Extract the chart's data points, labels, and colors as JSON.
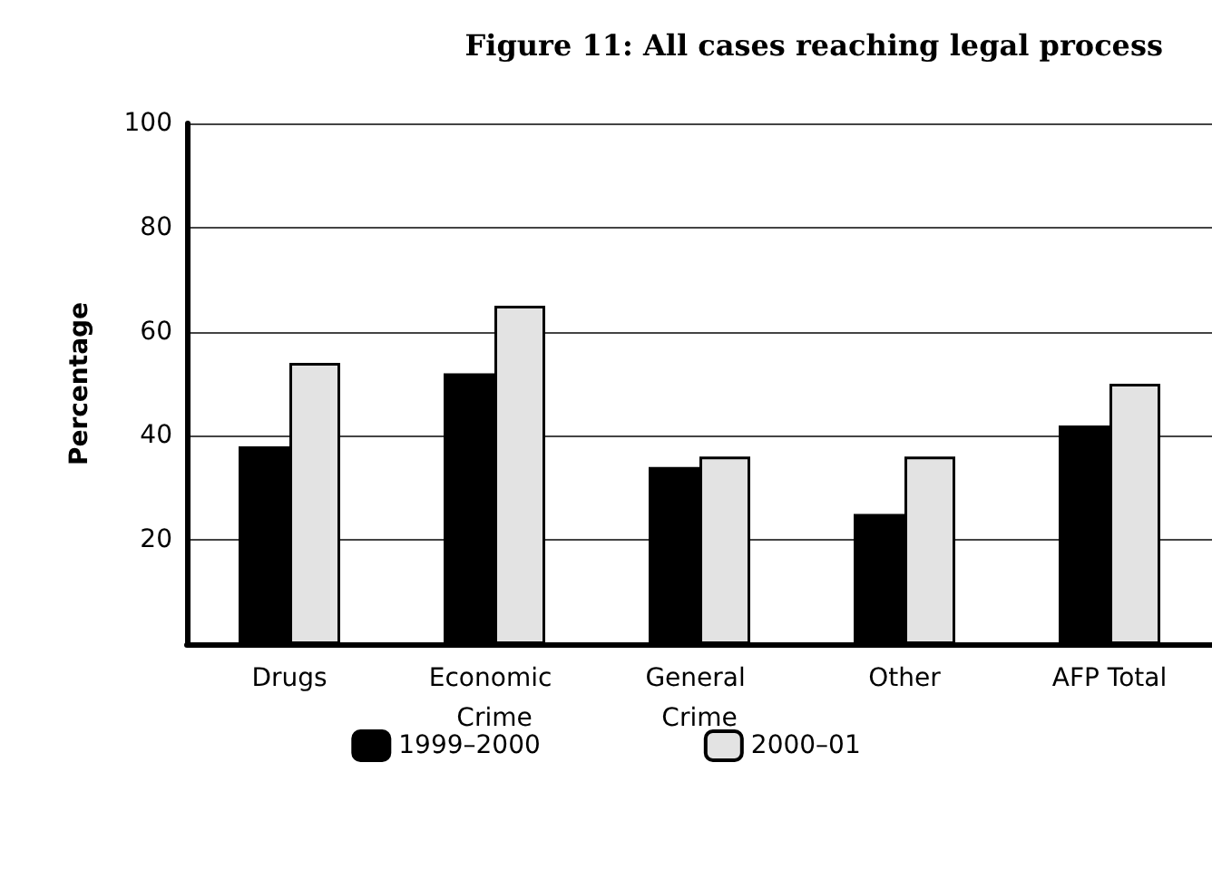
{
  "chart_data": {
    "type": "bar",
    "title": "Figure 11: All cases reaching legal process",
    "ylabel": "Percentage",
    "categories": [
      "Drugs",
      "Economic Crime",
      "General Crime",
      "Other",
      "AFP Total"
    ],
    "series": [
      {
        "name": "1999–2000",
        "color": "#000000",
        "values": [
          38,
          52,
          34,
          25,
          42
        ]
      },
      {
        "name": "2000–01",
        "color": "#e3e3e3",
        "values": [
          54,
          65,
          36,
          36,
          50
        ]
      }
    ],
    "ylim": [
      0,
      100
    ],
    "yticks": [
      {
        "value": 0,
        "label": null
      },
      20,
      40,
      60,
      80,
      100
    ],
    "grid": "y",
    "legend": "bottom"
  }
}
